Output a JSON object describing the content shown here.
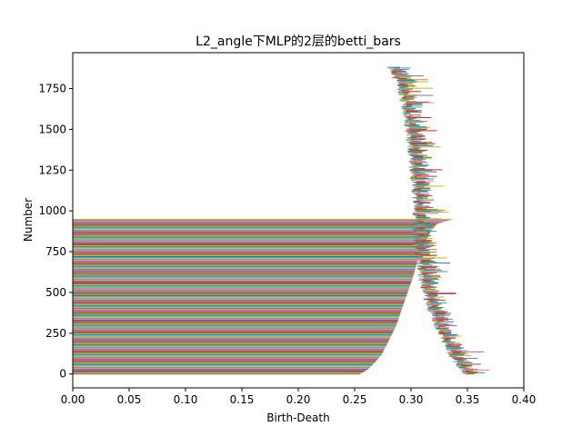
{
  "chart_data": {
    "type": "bar",
    "orientation": "horizontal",
    "title": "L2_angle下MLP的2层的betti_bars",
    "xlabel": "Birth-Death",
    "ylabel": "Number",
    "xlim": [
      0.0,
      0.4
    ],
    "ylim": [
      -85,
      1970
    ],
    "x_ticks": [
      "0.00",
      "0.05",
      "0.10",
      "0.15",
      "0.20",
      "0.25",
      "0.30",
      "0.35",
      "0.40"
    ],
    "y_ticks": [
      "0",
      "250",
      "500",
      "750",
      "1000",
      "1250",
      "1500",
      "1750"
    ],
    "grid": false,
    "legend": "none",
    "colors": [
      "#1f77b4",
      "#ff7f0e",
      "#2ca02c",
      "#d62728",
      "#9467bd",
      "#8c564b",
      "#e377c2",
      "#7f7f7f",
      "#bcbd22",
      "#17becf"
    ],
    "dimension_0": {
      "bar_count": 950,
      "start": 0.0,
      "death_profile": [
        {
          "index": 0,
          "x": 0.255
        },
        {
          "index": 30,
          "x": 0.262
        },
        {
          "index": 70,
          "x": 0.268
        },
        {
          "index": 120,
          "x": 0.274
        },
        {
          "index": 200,
          "x": 0.28
        },
        {
          "index": 300,
          "x": 0.287
        },
        {
          "index": 400,
          "x": 0.292
        },
        {
          "index": 500,
          "x": 0.297
        },
        {
          "index": 600,
          "x": 0.302
        },
        {
          "index": 700,
          "x": 0.306
        },
        {
          "index": 800,
          "x": 0.312
        },
        {
          "index": 880,
          "x": 0.318
        },
        {
          "index": 920,
          "x": 0.323
        },
        {
          "index": 949,
          "x": 0.337
        }
      ]
    },
    "dimension_1": {
      "bar_count": 1930,
      "index_from": 950,
      "index_to": 1880,
      "birth_profile": [
        {
          "index": 0,
          "x": 0.352
        },
        {
          "index": 100,
          "x": 0.34
        },
        {
          "index": 200,
          "x": 0.332
        },
        {
          "index": 300,
          "x": 0.326
        },
        {
          "index": 400,
          "x": 0.32
        },
        {
          "index": 500,
          "x": 0.315
        },
        {
          "index": 600,
          "x": 0.312
        },
        {
          "index": 700,
          "x": 0.31
        },
        {
          "index": 800,
          "x": 0.308
        },
        {
          "index": 900,
          "x": 0.307
        },
        {
          "index": 1000,
          "x": 0.307
        },
        {
          "index": 1200,
          "x": 0.305
        },
        {
          "index": 1400,
          "x": 0.302
        },
        {
          "index": 1600,
          "x": 0.298
        },
        {
          "index": 1750,
          "x": 0.293
        },
        {
          "index": 1880,
          "x": 0.285
        }
      ],
      "length_range": [
        0.004,
        0.03
      ]
    }
  }
}
